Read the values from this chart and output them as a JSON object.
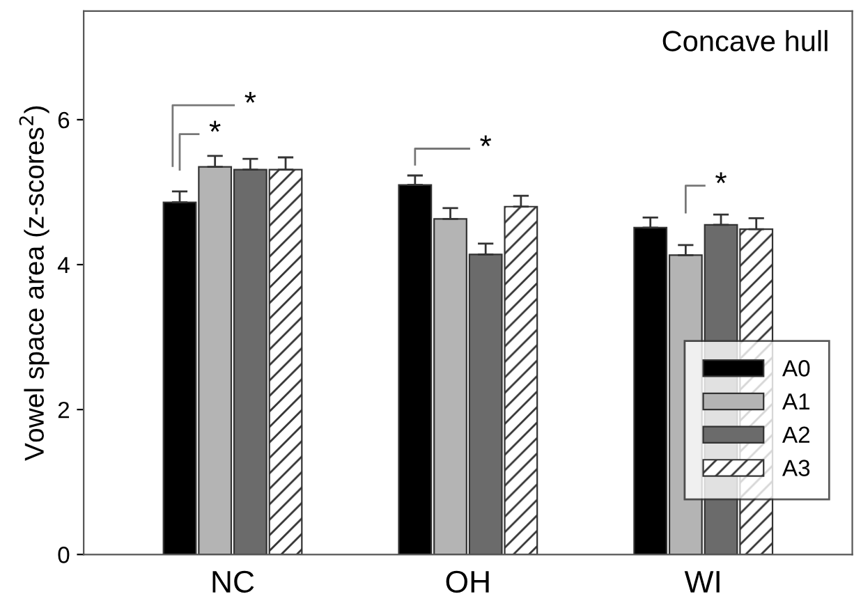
{
  "chart_data": {
    "type": "bar",
    "title": "Concave hull",
    "ylabel": "Vowel space area (z-scores$^{2}$)",
    "categories": [
      "NC",
      "OH",
      "WI"
    ],
    "series": [
      {
        "name": "A0",
        "color": "#000000",
        "values": [
          4.86,
          5.1,
          4.51
        ],
        "errors": [
          [
            4.86,
            5.01
          ],
          [
            5.1,
            5.23
          ],
          [
            4.51,
            4.65
          ]
        ]
      },
      {
        "name": "A1",
        "color": "#b4b4b4",
        "values": [
          5.35,
          4.63,
          4.13
        ],
        "errors": [
          [
            5.35,
            5.5
          ],
          [
            4.63,
            4.78
          ],
          [
            4.13,
            4.27
          ]
        ]
      },
      {
        "name": "A2",
        "color": "#6b6b6b",
        "values": [
          5.31,
          4.14,
          4.55
        ],
        "errors": [
          [
            5.31,
            5.46
          ],
          [
            4.14,
            4.29
          ],
          [
            4.55,
            4.69
          ]
        ]
      },
      {
        "name": "A3",
        "color": "#333333",
        "values": [
          5.31,
          4.8,
          4.49
        ],
        "errors": [
          [
            5.31,
            5.48
          ],
          [
            4.8,
            4.95
          ],
          [
            4.49,
            4.64
          ]
        ]
      }
    ],
    "annotations": [
      "*",
      "*",
      "*",
      "*"
    ],
    "ylim": [
      0,
      7.5
    ],
    "yticks": [
      0,
      2,
      4,
      6
    ],
    "grid": false,
    "legend": "bottom right"
  }
}
